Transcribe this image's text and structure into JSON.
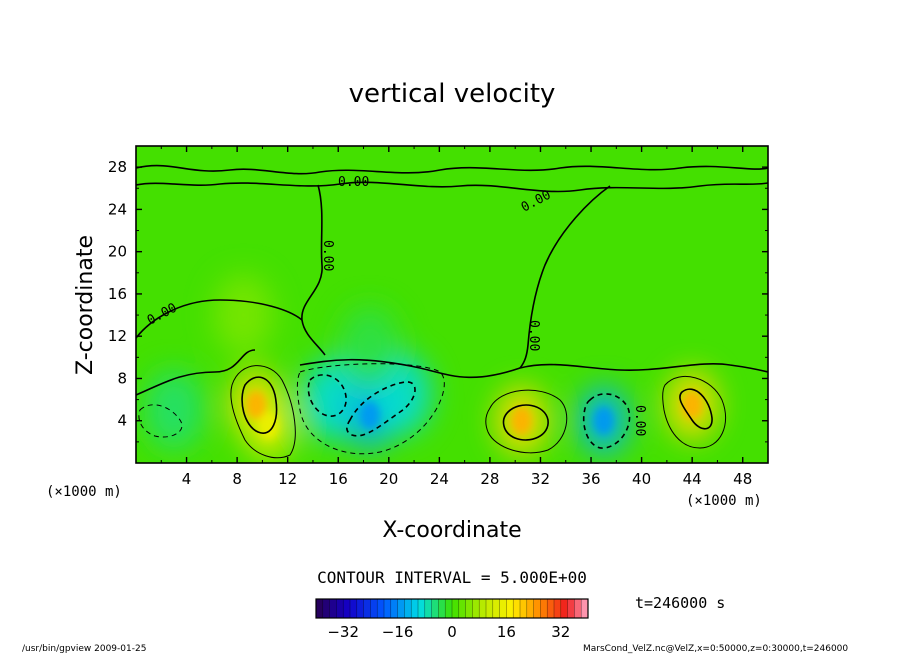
{
  "chart_data": {
    "type": "heatmap",
    "title": "vertical velocity",
    "xlabel": "X-coordinate",
    "ylabel": "Z-coordinate",
    "xunit": "(×1000 m)",
    "yunit": "(×1000 m)",
    "xlim": [
      0,
      50
    ],
    "ylim": [
      0,
      30
    ],
    "xticks": [
      4,
      8,
      12,
      16,
      20,
      24,
      28,
      32,
      36,
      40,
      44,
      48
    ],
    "yticks": [
      4,
      8,
      12,
      16,
      20,
      24,
      28
    ],
    "contour_interval_text": "CONTOUR INTERVAL = 5.000E+00",
    "contour_label": "0.00",
    "colorbar": {
      "min": -40,
      "max": 40,
      "ticks": [
        -32,
        -16,
        0,
        16,
        32
      ]
    },
    "features": [
      {
        "x": 9.5,
        "z": 5.5,
        "value": 12
      },
      {
        "x": 10.5,
        "z": 3.5,
        "value": 8
      },
      {
        "x": 30.5,
        "z": 4.0,
        "value": 12
      },
      {
        "x": 44.0,
        "z": 5.5,
        "value": 12
      },
      {
        "x": 15.5,
        "z": 6.0,
        "value": -6
      },
      {
        "x": 18.5,
        "z": 4.5,
        "value": -8
      },
      {
        "x": 21.0,
        "z": 6.5,
        "value": -6
      },
      {
        "x": 37.0,
        "z": 4.0,
        "value": -8
      },
      {
        "x": 3.0,
        "z": 5.0,
        "value": -3
      },
      {
        "x": 8.5,
        "z": 14.0,
        "value": 3
      },
      {
        "x": 18.5,
        "z": 11.0,
        "value": -2
      }
    ],
    "time_label": "t=246000 s"
  },
  "footer": {
    "left": "/usr/bin/gpview  2009-01-25",
    "right": "MarsCond_VelZ.nc@VelZ,x=0:50000,z=0:30000,t=246000"
  }
}
